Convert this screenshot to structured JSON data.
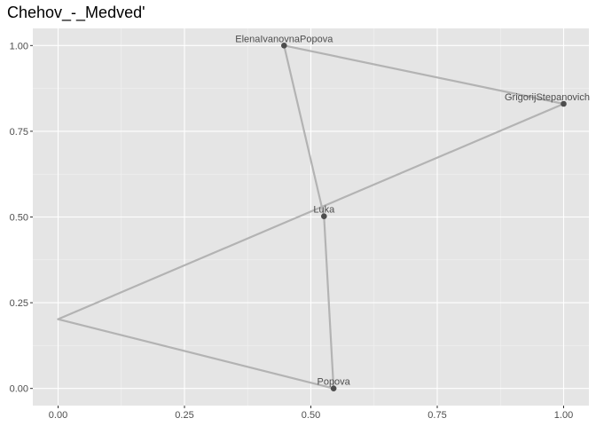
{
  "chart_data": {
    "type": "scatter",
    "title": "Chehov_-_Medved'",
    "xlabel": "",
    "ylabel": "",
    "xlim": [
      -0.05,
      1.05
    ],
    "ylim": [
      -0.05,
      1.05
    ],
    "x_ticks": [
      0.0,
      0.25,
      0.5,
      0.75,
      1.0
    ],
    "x_tick_labels": [
      "0.00",
      "0.25",
      "0.50",
      "0.75",
      "1.00"
    ],
    "y_ticks": [
      0.0,
      0.25,
      0.5,
      0.75,
      1.0
    ],
    "y_tick_labels": [
      "0.00",
      "0.25",
      "0.50",
      "0.75",
      "1.00"
    ],
    "grid": true,
    "panel_color": "#e5e5e5",
    "edge_color": "#b3b3b3",
    "point_color": "#4d4d4d",
    "nodes": [
      {
        "label": "ElenaIvanovnaPopova",
        "x": 0.447,
        "y": 1.0
      },
      {
        "label": "GrigorijStepanovich",
        "x": 1.0,
        "y": 0.83
      },
      {
        "label": "Luka",
        "x": 0.526,
        "y": 0.502
      },
      {
        "label": "",
        "x": 0.0,
        "y": 0.202
      },
      {
        "label": "Popova",
        "x": 0.545,
        "y": 0.0
      }
    ],
    "edges": [
      [
        "ElenaIvanovnaPopova",
        "GrigorijStepanovich"
      ],
      [
        "ElenaIvanovnaPopova",
        "Luka"
      ],
      [
        "GrigorijStepanovich",
        ""
      ],
      [
        "",
        "Popova"
      ],
      [
        "Luka",
        "Popova"
      ]
    ]
  }
}
